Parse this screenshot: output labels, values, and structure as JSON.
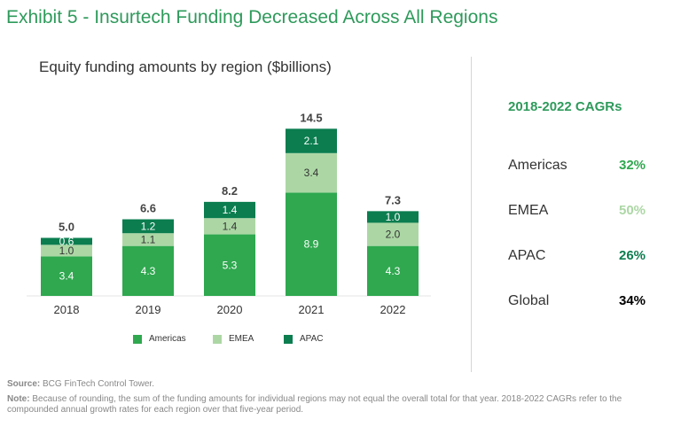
{
  "title": "Exhibit 5 - Insurtech Funding Decreased Across All Regions",
  "chart_data": {
    "type": "bar",
    "stacked": true,
    "title": "Equity funding amounts by region ($billions)",
    "categories": [
      "2018",
      "2019",
      "2020",
      "2021",
      "2022"
    ],
    "series": [
      {
        "name": "Americas",
        "values": [
          3.4,
          4.3,
          5.3,
          8.9,
          4.3
        ],
        "color": "#2fa84f",
        "label_color": "#ffffff"
      },
      {
        "name": "EMEA",
        "values": [
          1.0,
          1.1,
          1.4,
          3.4,
          2.0
        ],
        "color": "#acd7a5",
        "label_color": "#333333"
      },
      {
        "name": "APAC",
        "values": [
          0.6,
          1.2,
          1.4,
          2.1,
          1.0
        ],
        "color": "#0b7d4f",
        "label_color": "#ffffff"
      }
    ],
    "totals": [
      5.0,
      6.6,
      8.2,
      14.5,
      7.3
    ],
    "xlabel": "",
    "ylabel": "",
    "ylim": [
      0,
      14.5
    ],
    "legend": "bottom"
  },
  "cagr": {
    "title": "2018-2022 CAGRs",
    "items": [
      {
        "label": "Americas",
        "value": "32%",
        "color": "#2fa84f"
      },
      {
        "label": "EMEA",
        "value": "50%",
        "color": "#acd7a5"
      },
      {
        "label": "APAC",
        "value": "26%",
        "color": "#0b7d4f"
      },
      {
        "label": "Global",
        "value": "34%",
        "color": "#000000"
      }
    ]
  },
  "footer": {
    "source_label": "Source:",
    "source_text": "BCG FinTech Control Tower.",
    "note_label": "Note:",
    "note_text": "Because of rounding, the sum of the funding amounts for individual regions may not equal the overall total for that year. 2018-2022 CAGRs refer to the compounded annual growth rates for each region over that five-year period."
  }
}
